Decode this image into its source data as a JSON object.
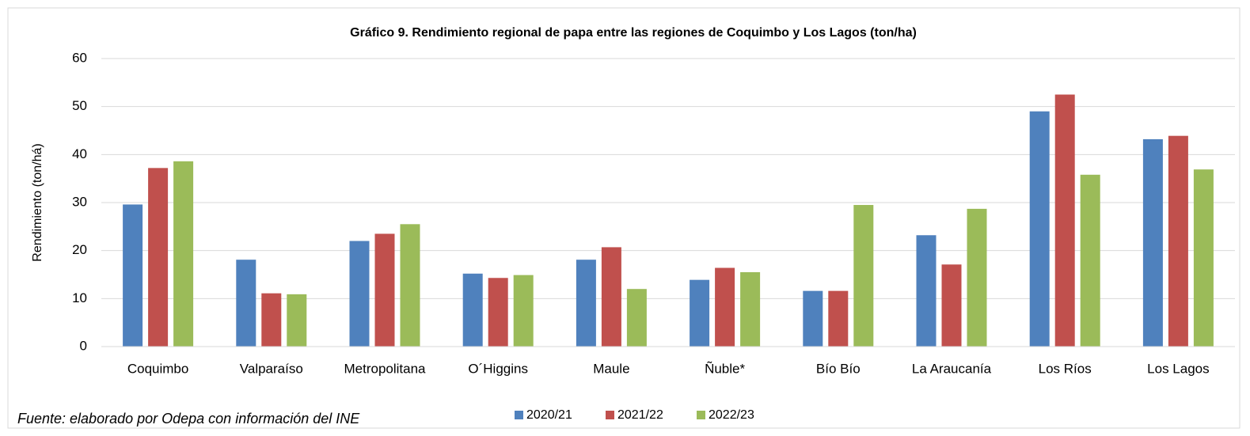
{
  "chart_data": {
    "type": "bar",
    "title": "Gráfico 9. Rendimiento regional de papa entre las regiones de Coquimbo y Los Lagos (ton/ha)",
    "y_label": "Rendimiento (ton/há)",
    "source": "Fuente: elaborado por Odepa con información del INE",
    "categories": [
      "Coquimbo",
      "Valparaíso",
      "Metropolitana",
      "O´Higgins",
      "Maule",
      "Ñuble*",
      "Bío Bío",
      "La Araucanía",
      "Los Ríos",
      "Los Lagos"
    ],
    "series": [
      {
        "name": "2020/21",
        "color": "#4f81bd",
        "values": [
          29.6,
          18.1,
          22.0,
          15.2,
          18.1,
          13.9,
          11.6,
          23.2,
          49.0,
          43.2
        ]
      },
      {
        "name": "2021/22",
        "color": "#c0504d",
        "values": [
          37.2,
          11.1,
          23.5,
          14.3,
          20.7,
          16.4,
          11.6,
          17.1,
          52.5,
          43.9
        ]
      },
      {
        "name": "2022/23",
        "color": "#9bbb59",
        "values": [
          38.6,
          10.9,
          25.5,
          14.9,
          12.0,
          15.5,
          29.5,
          28.7,
          35.8,
          36.9
        ]
      }
    ],
    "ylim": [
      0,
      60
    ],
    "yticks": [
      0,
      10,
      20,
      30,
      40,
      50,
      60
    ],
    "grid": true,
    "legend": "bottom"
  }
}
